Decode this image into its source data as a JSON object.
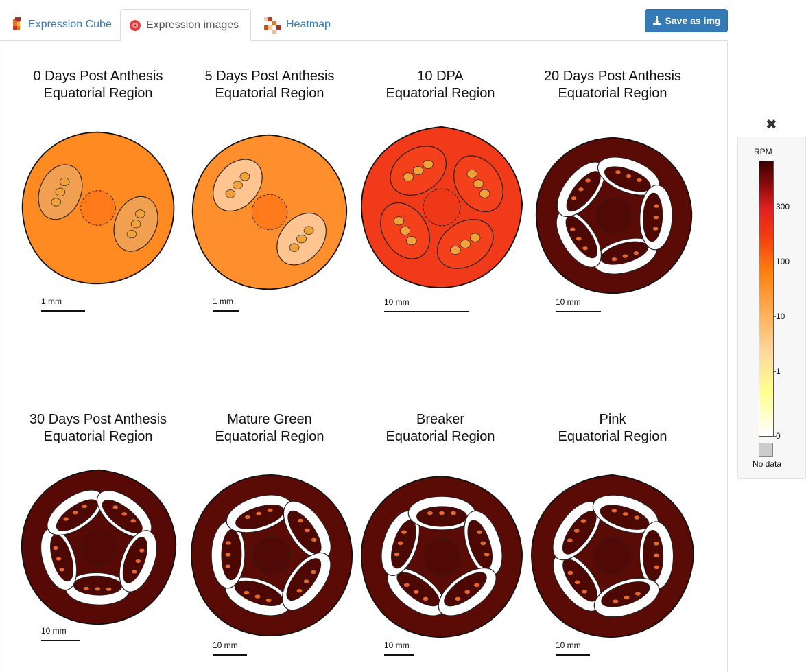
{
  "tabs": [
    {
      "label": "Expression Cube",
      "icon": "cube-icon",
      "active": false
    },
    {
      "label": "Expression images",
      "icon": "tomato-icon",
      "active": true
    },
    {
      "label": "Heatmap",
      "icon": "heatmap-icon",
      "active": false
    }
  ],
  "toolbar": {
    "save_label": "Save as img",
    "save_icon": "download-icon"
  },
  "images": [
    {
      "title_line1": "0 Days Post Anthesis",
      "title_line2": "Equatorial Region",
      "scale": "1 mm",
      "flesh": "#ff8a22",
      "center": "#ff7a1a",
      "locule": "#f0a050"
    },
    {
      "title_line1": "5 Days Post Anthesis",
      "title_line2": "Equatorial Region",
      "scale": "1 mm",
      "flesh": "#ff8f2c",
      "center": "#ff7a1a",
      "locule": "#ffc490"
    },
    {
      "title_line1": "10 DPA",
      "title_line2": "Equatorial Region",
      "scale": "10 mm",
      "flesh": "#f03a1a",
      "center": "#ee3818",
      "locule": "#f5401c"
    },
    {
      "title_line1": "20 Days Post Anthesis",
      "title_line2": "Equatorial Region",
      "scale": "10 mm",
      "flesh": "#5a0b06",
      "center": "#500905",
      "locule": "#4d0804"
    },
    {
      "title_line1": "30 Days Post Anthesis",
      "title_line2": "Equatorial Region",
      "scale": "10 mm",
      "flesh": "#570a05",
      "center": "#500905",
      "locule": "#4d0804"
    },
    {
      "title_line1": "Mature Green",
      "title_line2": "Equatorial Region",
      "scale": "10 mm",
      "flesh": "#5a0b06",
      "center": "#500905",
      "locule": "#4d0804"
    },
    {
      "title_line1": "Breaker",
      "title_line2": "Equatorial Region",
      "scale": "10 mm",
      "flesh": "#5a0b06",
      "center": "#500905",
      "locule": "#4d0804"
    },
    {
      "title_line1": "Pink",
      "title_line2": "Equatorial Region",
      "scale": "10 mm",
      "flesh": "#5a0b06",
      "center": "#500905",
      "locule": "#4d0804"
    }
  ],
  "legend": {
    "title": "RPM",
    "ticks": [
      "300",
      "100",
      "10",
      "1",
      "0"
    ],
    "no_data_label": "No data",
    "close_icon": "close-icon"
  }
}
